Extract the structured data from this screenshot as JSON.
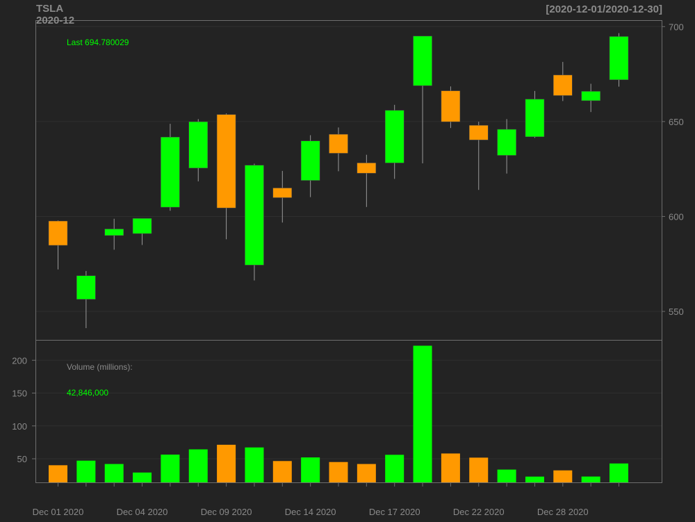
{
  "header": {
    "symbol": "TSLA",
    "period": "2020-12",
    "range": "[2020-12-01/2020-12-30]"
  },
  "price_panel": {
    "last_label": "Last 694.780029"
  },
  "volume_panel": {
    "title": "Volume (millions):",
    "last_value": "42,846,000"
  },
  "colors": {
    "background": "#232323",
    "up": "#00ff00",
    "down": "#ff9900",
    "axis_text": "#8a8a8a",
    "frame": "#6e6e6e"
  },
  "chart_data": {
    "type": "candlestick",
    "dates": [
      "2020-12-01",
      "2020-12-02",
      "2020-12-03",
      "2020-12-04",
      "2020-12-07",
      "2020-12-08",
      "2020-12-09",
      "2020-12-10",
      "2020-12-11",
      "2020-12-14",
      "2020-12-15",
      "2020-12-16",
      "2020-12-17",
      "2020-12-18",
      "2020-12-21",
      "2020-12-22",
      "2020-12-23",
      "2020-12-24",
      "2020-12-28",
      "2020-12-29",
      "2020-12-30"
    ],
    "open": [
      597.6,
      556.4,
      590.0,
      591.0,
      604.9,
      625.5,
      653.7,
      574.4,
      615.0,
      619.0,
      643.3,
      628.2,
      628.2,
      668.9,
      666.2,
      648.0,
      632.2,
      642.0,
      674.5,
      661.0,
      672.0
    ],
    "high": [
      597.9,
      571.3,
      598.8,
      598.0,
      648.8,
      651.3,
      654.3,
      627.8,
      624.0,
      642.8,
      646.9,
      632.5,
      658.8,
      695.0,
      668.5,
      649.9,
      651.3,
      666.1,
      681.4,
      669.9,
      696.6
    ],
    "low": [
      572.1,
      541.2,
      582.5,
      585.0,
      603.0,
      618.5,
      588.0,
      566.3,
      596.8,
      610.2,
      623.8,
      605.0,
      619.8,
      628.0,
      646.6,
      614.0,
      622.6,
      641.4,
      660.8,
      655.0,
      668.4
    ],
    "close": [
      584.8,
      568.8,
      593.4,
      599.0,
      641.8,
      649.9,
      604.5,
      627.0,
      609.9,
      639.8,
      633.3,
      622.8,
      655.9,
      695.0,
      649.9,
      640.3,
      645.9,
      661.8,
      663.7,
      665.9,
      694.8
    ],
    "volume": [
      40.1,
      47.1,
      42.0,
      29.0,
      56.3,
      64.3,
      71.3,
      67.2,
      46.5,
      52.0,
      45.0,
      42.0,
      56.0,
      222.1,
      58.0,
      51.7,
      33.5,
      22.8,
      32.3,
      22.9,
      42.8
    ],
    "price_axis": {
      "ticks": [
        550,
        600,
        650,
        700
      ],
      "range": [
        535,
        703.4
      ]
    },
    "volume_axis": {
      "ticks": [
        50,
        100,
        150,
        200
      ],
      "range": [
        14,
        231
      ]
    },
    "x_tick_labels": [
      {
        "index": 0,
        "label": "Dec 01 2020"
      },
      {
        "index": 3,
        "label": "Dec 04 2020"
      },
      {
        "index": 6,
        "label": "Dec 09 2020"
      },
      {
        "index": 9,
        "label": "Dec 14 2020"
      },
      {
        "index": 12,
        "label": "Dec 17 2020"
      },
      {
        "index": 15,
        "label": "Dec 22 2020"
      },
      {
        "index": 18,
        "label": "Dec 28 2020"
      }
    ]
  }
}
